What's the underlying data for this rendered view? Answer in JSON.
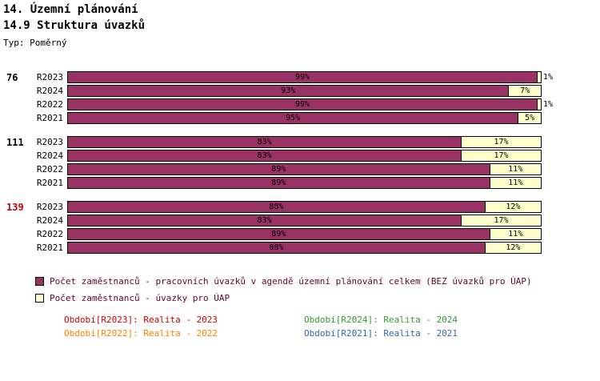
{
  "header": {
    "title": "14. Územní plánování",
    "subtitle": "14.9 Struktura úvazků",
    "type_label": "Typ: Poměrný"
  },
  "colors": {
    "main": "#993366",
    "uap": "#FFFFCC"
  },
  "chart_data": {
    "type": "bar",
    "orientation": "horizontal",
    "stacked": true,
    "unit": "%",
    "xlim": [
      0,
      100
    ],
    "series_names": [
      "Počet zaměstnanců - pracovních úvazků v agendě územní plánování celkem (BEZ úvazků pro ÚAP)",
      "Počet zaměstnanců - úvazky pro ÚAP"
    ],
    "groups": [
      {
        "total": "76",
        "total_color": "#000000",
        "rows": [
          {
            "label": "R2023",
            "main": 99,
            "uap": 1
          },
          {
            "label": "R2024",
            "main": 93,
            "uap": 7
          },
          {
            "label": "R2022",
            "main": 99,
            "uap": 1
          },
          {
            "label": "R2021",
            "main": 95,
            "uap": 5
          }
        ]
      },
      {
        "total": "111",
        "total_color": "#000000",
        "rows": [
          {
            "label": "R2023",
            "main": 83,
            "uap": 17
          },
          {
            "label": "R2024",
            "main": 83,
            "uap": 17
          },
          {
            "label": "R2022",
            "main": 89,
            "uap": 11
          },
          {
            "label": "R2021",
            "main": 89,
            "uap": 11
          }
        ]
      },
      {
        "total": "139",
        "total_color": "#CC0000",
        "rows": [
          {
            "label": "R2023",
            "main": 88,
            "uap": 12
          },
          {
            "label": "R2024",
            "main": 83,
            "uap": 17
          },
          {
            "label": "R2022",
            "main": 89,
            "uap": 11
          },
          {
            "label": "R2021",
            "main": 88,
            "uap": 12
          }
        ]
      }
    ]
  },
  "legend": [
    {
      "swatch": "#993366",
      "label": "Počet zaměstnanců - pracovních úvazků v agendě územní plánování celkem (BEZ úvazků pro ÚAP)"
    },
    {
      "swatch": "#FFFFCC",
      "label": "Počet zaměstnanců - úvazky pro ÚAP"
    }
  ],
  "periods": [
    {
      "label": "Období[R2023]:",
      "value": "Realita - 2023",
      "color": "#CC0000"
    },
    {
      "label": "Období[R2024]:",
      "value": "Realita - 2024",
      "color": "#339933"
    },
    {
      "label": "Období[R2022]:",
      "value": "Realita - 2022",
      "color": "#FF8000"
    },
    {
      "label": "Období[R2021]:",
      "value": "Realita - 2021",
      "color": "#3366AA"
    }
  ]
}
